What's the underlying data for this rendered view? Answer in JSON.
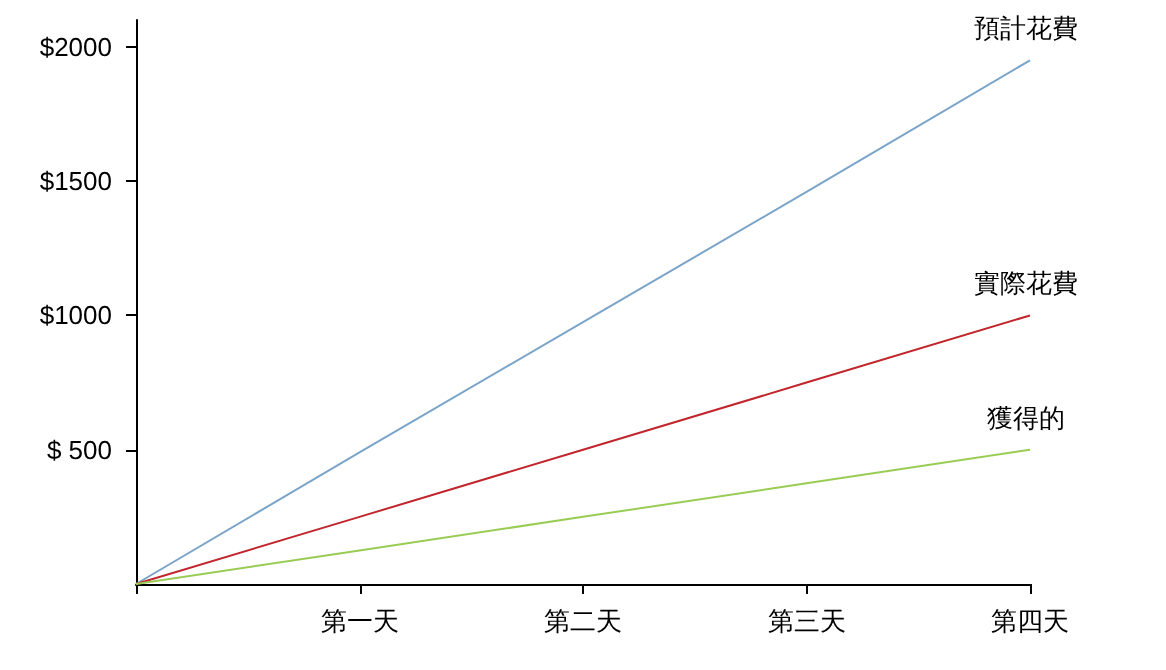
{
  "chart_data": {
    "type": "line",
    "categories": [
      null,
      "第一天",
      "第二天",
      "第三天",
      "第四天"
    ],
    "series": [
      {
        "name": "預計花費",
        "color": "#7ba4c9",
        "values": [
          0,
          490,
          975,
          1460,
          1950
        ]
      },
      {
        "name": "實際花費",
        "color": "#c0262c",
        "values": [
          0,
          250,
          500,
          750,
          1000
        ]
      },
      {
        "name": "獲得的",
        "color": "#99cc55",
        "values": [
          0,
          125,
          250,
          375,
          500
        ]
      }
    ],
    "ylim": [
      0,
      2100
    ],
    "yticks": [
      {
        "value": 500,
        "label": "$ 500"
      },
      {
        "value": 1000,
        "label": "$1000"
      },
      {
        "value": 1500,
        "label": "$1500"
      },
      {
        "value": 2000,
        "label": "$2000"
      }
    ],
    "grid": false,
    "legend": false,
    "marker": "none",
    "line_style": "solid"
  }
}
